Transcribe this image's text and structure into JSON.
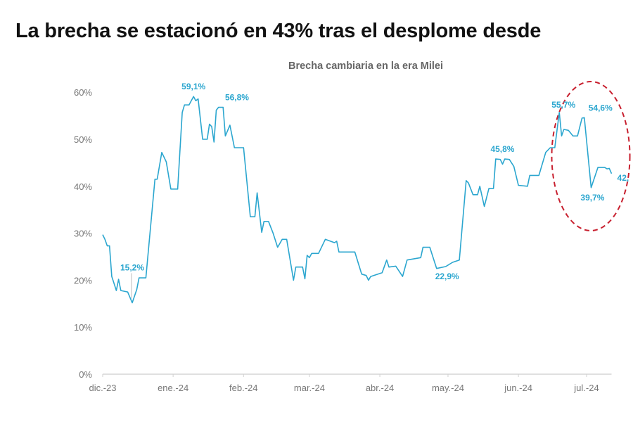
{
  "chart_data": {
    "type": "line",
    "title": "La brecha se estacionó en 43% tras el desplome desde",
    "subtitle": "Brecha cambiaria en la era Milei",
    "xlabel": "",
    "ylabel": "",
    "ylim": [
      0,
      60
    ],
    "xlim": [
      "2023-12-01",
      "2024-07-12"
    ],
    "grid": false,
    "line_color": "#2ba6cf",
    "highlight_color": "#c8202f",
    "y_ticks": [
      {
        "value": 0,
        "label": "0%"
      },
      {
        "value": 10,
        "label": "10%"
      },
      {
        "value": 20,
        "label": "20%"
      },
      {
        "value": 30,
        "label": "30%"
      },
      {
        "value": 40,
        "label": "40%"
      },
      {
        "value": 50,
        "label": "50%"
      },
      {
        "value": 60,
        "label": "60%"
      }
    ],
    "x_ticks": [
      {
        "date": "2023-12-01",
        "label": "dic.-23"
      },
      {
        "date": "2024-01-01",
        "label": "ene.-24"
      },
      {
        "date": "2024-02-01",
        "label": "feb.-24"
      },
      {
        "date": "2024-03-01",
        "label": "mar.-24"
      },
      {
        "date": "2024-04-01",
        "label": "abr.-24"
      },
      {
        "date": "2024-05-01",
        "label": "may.-24"
      },
      {
        "date": "2024-06-01",
        "label": "jun.-24"
      },
      {
        "date": "2024-07-01",
        "label": "jul.-24"
      }
    ],
    "series": [
      {
        "points": [
          [
            "2023-12-01",
            29.7
          ],
          [
            "2023-12-02",
            28.7
          ],
          [
            "2023-12-03",
            27.3
          ],
          [
            "2023-12-04",
            27.3
          ],
          [
            "2023-12-05",
            20.8
          ],
          [
            "2023-12-06",
            19.3
          ],
          [
            "2023-12-07",
            17.8
          ],
          [
            "2023-12-08",
            20.2
          ],
          [
            "2023-12-09",
            17.8
          ],
          [
            "2023-12-12",
            17.5
          ],
          [
            "2023-12-14",
            15.2
          ],
          [
            "2023-12-16",
            18.0
          ],
          [
            "2023-12-17",
            20.5
          ],
          [
            "2023-12-20",
            20.5
          ],
          [
            "2023-12-24",
            41.5
          ],
          [
            "2023-12-25",
            41.5
          ],
          [
            "2023-12-27",
            47.2
          ],
          [
            "2023-12-29",
            45.2
          ],
          [
            "2023-12-31",
            39.4
          ],
          [
            "2024-01-03",
            39.4
          ],
          [
            "2024-01-05",
            55.7
          ],
          [
            "2024-01-06",
            57.3
          ],
          [
            "2024-01-08",
            57.3
          ],
          [
            "2024-01-10",
            59.1
          ],
          [
            "2024-01-11",
            58.2
          ],
          [
            "2024-01-12",
            58.6
          ],
          [
            "2024-01-14",
            50.0
          ],
          [
            "2024-01-16",
            50.0
          ],
          [
            "2024-01-17",
            53.2
          ],
          [
            "2024-01-18",
            52.7
          ],
          [
            "2024-01-19",
            49.4
          ],
          [
            "2024-01-20",
            56.2
          ],
          [
            "2024-01-21",
            56.8
          ],
          [
            "2024-01-23",
            56.8
          ],
          [
            "2024-01-24",
            50.7
          ],
          [
            "2024-01-26",
            53.0
          ],
          [
            "2024-01-28",
            48.2
          ],
          [
            "2024-02-01",
            48.2
          ],
          [
            "2024-02-04",
            33.5
          ],
          [
            "2024-02-06",
            33.5
          ],
          [
            "2024-02-07",
            38.6
          ],
          [
            "2024-02-09",
            30.2
          ],
          [
            "2024-02-10",
            32.5
          ],
          [
            "2024-02-12",
            32.5
          ],
          [
            "2024-02-14",
            30.0
          ],
          [
            "2024-02-16",
            27.0
          ],
          [
            "2024-02-18",
            28.7
          ],
          [
            "2024-02-20",
            28.7
          ],
          [
            "2024-02-23",
            20.0
          ],
          [
            "2024-02-24",
            22.8
          ],
          [
            "2024-02-27",
            22.8
          ],
          [
            "2024-02-28",
            20.3
          ],
          [
            "2024-02-29",
            25.3
          ],
          [
            "2024-03-01",
            24.8
          ],
          [
            "2024-03-02",
            25.7
          ],
          [
            "2024-03-05",
            25.7
          ],
          [
            "2024-03-08",
            28.7
          ],
          [
            "2024-03-12",
            28.0
          ],
          [
            "2024-03-13",
            28.3
          ],
          [
            "2024-03-14",
            26.0
          ],
          [
            "2024-03-21",
            26.0
          ],
          [
            "2024-03-24",
            21.3
          ],
          [
            "2024-03-26",
            21.0
          ],
          [
            "2024-03-27",
            20.0
          ],
          [
            "2024-03-28",
            20.8
          ],
          [
            "2024-04-02",
            21.6
          ],
          [
            "2024-04-04",
            24.3
          ],
          [
            "2024-04-05",
            22.8
          ],
          [
            "2024-04-08",
            23.0
          ],
          [
            "2024-04-11",
            20.8
          ],
          [
            "2024-04-13",
            24.3
          ],
          [
            "2024-04-19",
            24.8
          ],
          [
            "2024-04-20",
            27.0
          ],
          [
            "2024-04-23",
            27.0
          ],
          [
            "2024-04-26",
            22.5
          ],
          [
            "2024-04-30",
            22.9
          ],
          [
            "2024-05-03",
            23.8
          ],
          [
            "2024-05-06",
            24.3
          ],
          [
            "2024-05-09",
            41.2
          ],
          [
            "2024-05-10",
            40.7
          ],
          [
            "2024-05-12",
            38.2
          ],
          [
            "2024-05-14",
            38.2
          ],
          [
            "2024-05-15",
            40.0
          ],
          [
            "2024-05-17",
            35.7
          ],
          [
            "2024-05-19",
            39.5
          ],
          [
            "2024-05-21",
            39.5
          ],
          [
            "2024-05-22",
            45.8
          ],
          [
            "2024-05-24",
            45.7
          ],
          [
            "2024-05-25",
            44.7
          ],
          [
            "2024-05-26",
            45.8
          ],
          [
            "2024-05-28",
            45.7
          ],
          [
            "2024-05-30",
            44.2
          ],
          [
            "2024-06-01",
            40.2
          ],
          [
            "2024-06-05",
            40.0
          ],
          [
            "2024-06-06",
            42.3
          ],
          [
            "2024-06-10",
            42.3
          ],
          [
            "2024-06-13",
            47.2
          ],
          [
            "2024-06-15",
            48.2
          ],
          [
            "2024-06-17",
            48.2
          ],
          [
            "2024-06-19",
            55.7
          ],
          [
            "2024-06-20",
            50.7
          ],
          [
            "2024-06-21",
            52.1
          ],
          [
            "2024-06-23",
            51.9
          ],
          [
            "2024-06-25",
            50.7
          ],
          [
            "2024-06-27",
            50.7
          ],
          [
            "2024-06-29",
            54.5
          ],
          [
            "2024-06-30",
            54.6
          ],
          [
            "2024-07-03",
            39.7
          ],
          [
            "2024-07-06",
            44.0
          ],
          [
            "2024-07-09",
            44.0
          ],
          [
            "2024-07-10",
            43.7
          ],
          [
            "2024-07-11",
            43.8
          ],
          [
            "2024-07-12",
            42.7
          ]
        ]
      }
    ],
    "annotations": [
      {
        "text": "15,2%",
        "date": "2023-12-14",
        "value": 15.2,
        "placement": "above-leader"
      },
      {
        "text": "59,1%",
        "date": "2024-01-10",
        "value": 59.1,
        "placement": "above"
      },
      {
        "text": "56,8%",
        "date": "2024-01-22",
        "value": 56.8,
        "placement": "above-right"
      },
      {
        "text": "22,9%",
        "date": "2024-04-30",
        "value": 22.9,
        "placement": "below"
      },
      {
        "text": "45,8%",
        "date": "2024-05-25",
        "value": 45.8,
        "placement": "above"
      },
      {
        "text": "55,7%",
        "date": "2024-06-19",
        "value": 55.7,
        "placement": "above-left"
      },
      {
        "text": "54,6%",
        "date": "2024-06-30",
        "value": 54.6,
        "placement": "above-right"
      },
      {
        "text": "39,7%",
        "date": "2024-07-03",
        "value": 39.7,
        "placement": "below"
      },
      {
        "text": "42,",
        "date": "2024-07-12",
        "value": 42.7,
        "placement": "right"
      }
    ],
    "highlight": {
      "shape": "dashed-ellipse",
      "from": "2024-06-20",
      "to": "2024-07-12"
    }
  }
}
